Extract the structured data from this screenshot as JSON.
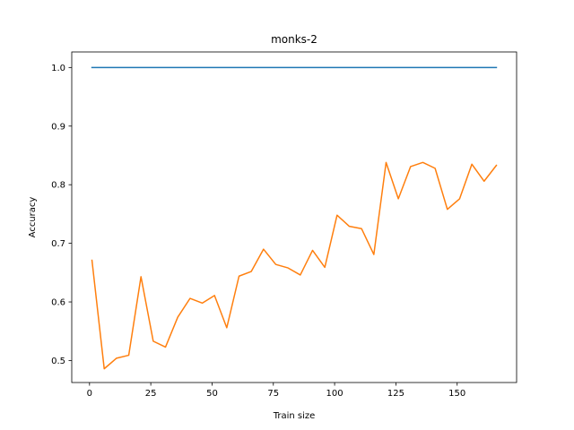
{
  "chart_data": {
    "type": "line",
    "title": "monks-2",
    "xlabel": "Train size",
    "ylabel": "Accuracy",
    "xlim": [
      -7.25,
      174.25
    ],
    "ylim": [
      0.4625,
      1.0265
    ],
    "xticks": [
      0,
      25,
      50,
      75,
      100,
      125,
      150
    ],
    "yticks": [
      0.5,
      0.6,
      0.7,
      0.8,
      0.9,
      1.0
    ],
    "ytick_labels": [
      "0.5",
      "0.6",
      "0.7",
      "0.8",
      "0.9",
      "1.0"
    ],
    "grid": false,
    "legend": "none",
    "x": [
      1,
      6,
      11,
      16,
      21,
      26,
      31,
      36,
      41,
      46,
      51,
      56,
      61,
      66,
      71,
      76,
      81,
      86,
      91,
      96,
      101,
      106,
      111,
      116,
      121,
      126,
      131,
      136,
      141,
      146,
      151,
      156,
      161,
      166
    ],
    "series": [
      {
        "color": "#1f77b4",
        "values": [
          1.0,
          1.0,
          1.0,
          1.0,
          1.0,
          1.0,
          1.0,
          1.0,
          1.0,
          1.0,
          1.0,
          1.0,
          1.0,
          1.0,
          1.0,
          1.0,
          1.0,
          1.0,
          1.0,
          1.0,
          1.0,
          1.0,
          1.0,
          1.0,
          1.0,
          1.0,
          1.0,
          1.0,
          1.0,
          1.0,
          1.0,
          1.0,
          1.0,
          1.0
        ]
      },
      {
        "color": "#ff7f0e",
        "values": [
          0.671,
          0.486,
          0.504,
          0.509,
          0.643,
          0.533,
          0.523,
          0.574,
          0.606,
          0.598,
          0.611,
          0.556,
          0.644,
          0.652,
          0.69,
          0.664,
          0.658,
          0.646,
          0.688,
          0.659,
          0.748,
          0.729,
          0.725,
          0.681,
          0.838,
          0.776,
          0.831,
          0.838,
          0.828,
          0.758,
          0.776,
          0.835,
          0.806,
          0.833
        ]
      }
    ]
  }
}
